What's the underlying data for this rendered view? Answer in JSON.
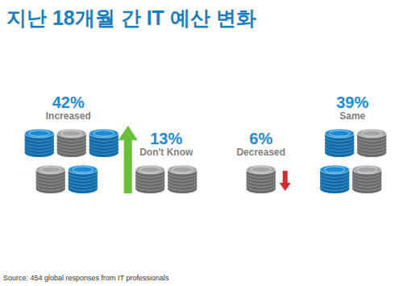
{
  "chart_data": {
    "type": "pictogram",
    "title": "지난 18개월 간 IT 예산 변화",
    "categories": [
      "Increased",
      "Don't Know",
      "Decreased",
      "Same"
    ],
    "values": [
      42,
      13,
      6,
      39
    ],
    "value_labels": [
      "42%",
      "13%",
      "6%",
      "39%"
    ],
    "data_labels": true,
    "tick_labels": false,
    "color": "#1a8cd8",
    "annotations": [
      "Source: 454 global responses from IT professionals"
    ]
  }
}
